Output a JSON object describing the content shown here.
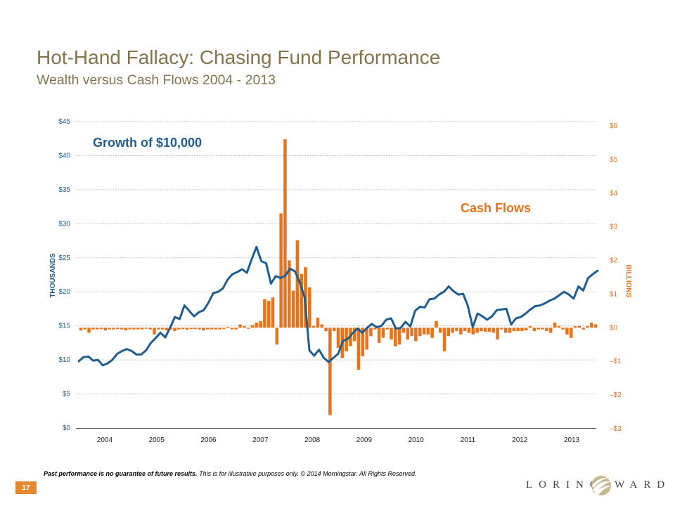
{
  "slide": {
    "title": "Hot-Hand Fallacy: Chasing Fund Performance",
    "subtitle": "Wealth versus Cash Flows 2004 - 2013",
    "page_number": "17",
    "disclaimer_bold": "Past performance is no guarantee of future results.",
    "disclaimer_rest": " This is for illustrative purposes only. © 2014 Morningstar. All Rights Reserved.",
    "logo_left": "LORING",
    "logo_right": "WARD"
  },
  "colors": {
    "title": "#85734c",
    "line": "#1f5d8e",
    "bars": "#e8731a",
    "left_axis": "#1f5d8e",
    "right_axis": "#e8731a",
    "grid": "#b5b5b5",
    "page_badge": "#e38a2f"
  },
  "chart_data": {
    "type": "bar+line",
    "grid": true,
    "x_tick_labels": [
      "2004",
      "2005",
      "2006",
      "2007",
      "2008",
      "2009",
      "2010",
      "2011",
      "2012",
      "2013"
    ],
    "left_axis": {
      "label": "THOUSANDS",
      "ylim": [
        0,
        45
      ],
      "ticks": [
        0,
        5,
        10,
        15,
        20,
        25,
        30,
        35,
        40,
        45
      ],
      "tick_labels": [
        "$0",
        "$5",
        "$10",
        "$15",
        "$20",
        "$25",
        "$30",
        "$35",
        "$40",
        "$45"
      ]
    },
    "right_axis": {
      "label": "BILLIONS",
      "ylim": [
        -3,
        6
      ],
      "ticks": [
        -3,
        -2,
        -1,
        0,
        1,
        2,
        3,
        4,
        5,
        6
      ],
      "tick_labels": [
        "–$3",
        "–$2",
        "–$1",
        "$0",
        "$1",
        "$2",
        "$3",
        "$4",
        "$5",
        "$6"
      ]
    },
    "annotations": {
      "line_label": "Growth of $10,000",
      "bars_label": "Cash Flows"
    },
    "series": [
      {
        "name": "Growth of $10,000",
        "kind": "line",
        "axis": "left",
        "values": [
          9.8,
          10.4,
          10.5,
          9.9,
          10.0,
          9.2,
          9.5,
          10.0,
          10.9,
          11.3,
          11.6,
          11.3,
          10.8,
          10.8,
          11.4,
          12.5,
          13.2,
          14.0,
          13.3,
          14.7,
          16.3,
          16.0,
          18.0,
          17.2,
          16.4,
          17.0,
          17.3,
          18.4,
          19.8,
          20.0,
          20.5,
          21.8,
          22.6,
          22.9,
          23.3,
          22.8,
          24.8,
          26.6,
          24.5,
          24.2,
          21.2,
          22.3,
          22.0,
          22.4,
          23.4,
          23.0,
          21.4,
          19.2,
          11.4,
          10.6,
          11.5,
          10.3,
          9.7,
          10.3,
          10.9,
          12.8,
          13.1,
          13.9,
          14.6,
          14.0,
          14.7,
          15.3,
          14.8,
          15.0,
          15.9,
          16.1,
          14.6,
          14.7,
          15.6,
          14.9,
          17.2,
          17.8,
          17.7,
          18.9,
          19.0,
          19.6,
          20.0,
          20.8,
          20.1,
          19.6,
          19.7,
          17.9,
          14.8,
          16.8,
          16.4,
          15.9,
          16.4,
          17.3,
          17.4,
          17.5,
          15.2,
          16.1,
          16.3,
          16.8,
          17.4,
          17.9,
          18.0,
          18.3,
          18.7,
          19.0,
          19.5,
          20.0,
          19.6,
          19.0,
          20.8,
          20.2,
          22.0,
          22.6,
          23.1
        ]
      },
      {
        "name": "Cash Flows",
        "kind": "bar",
        "axis": "right",
        "values": [
          -0.08,
          -0.05,
          -0.15,
          -0.05,
          -0.05,
          -0.04,
          -0.08,
          -0.05,
          -0.05,
          -0.04,
          -0.05,
          -0.08,
          -0.05,
          -0.05,
          -0.05,
          -0.05,
          -0.03,
          -0.05,
          -0.2,
          -0.05,
          -0.05,
          -0.08,
          -0.05,
          -0.1,
          -0.05,
          -0.04,
          -0.06,
          -0.04,
          -0.04,
          -0.05,
          -0.08,
          -0.05,
          -0.05,
          -0.05,
          -0.05,
          -0.04,
          0.03,
          -0.05,
          -0.05,
          0.1,
          0.05,
          -0.03,
          0.08,
          0.15,
          0.2,
          0.85,
          0.8,
          0.9,
          -0.5,
          3.4,
          5.6,
          2.0,
          1.1,
          2.6,
          1.6,
          1.8,
          1.2,
          0.05,
          0.3,
          0.1,
          -0.1,
          -2.6,
          -0.1,
          -0.6,
          -0.9,
          -0.7,
          -0.55,
          -0.4,
          -1.25,
          -0.85,
          -0.65,
          -0.25,
          -0.05,
          -0.45,
          -0.3,
          -0.05,
          -0.35,
          -0.55,
          -0.5,
          -0.15,
          -0.35,
          -0.25,
          -0.4,
          -0.25,
          -0.2,
          -0.2,
          -0.3,
          0.2,
          -0.15,
          -0.7,
          -0.25,
          -0.15,
          -0.1,
          -0.2,
          -0.1,
          -0.15,
          -0.2,
          -0.15,
          -0.1,
          -0.12,
          -0.12,
          -0.15,
          -0.35,
          -0.05,
          -0.15,
          -0.15,
          -0.1,
          -0.1,
          -0.1,
          -0.08,
          0.05,
          -0.1,
          -0.05,
          -0.05,
          -0.1,
          -0.15,
          0.15,
          0.05,
          -0.05,
          -0.2,
          -0.3,
          0.05,
          0.05,
          -0.05,
          0.05,
          0.15,
          0.1
        ]
      }
    ]
  }
}
